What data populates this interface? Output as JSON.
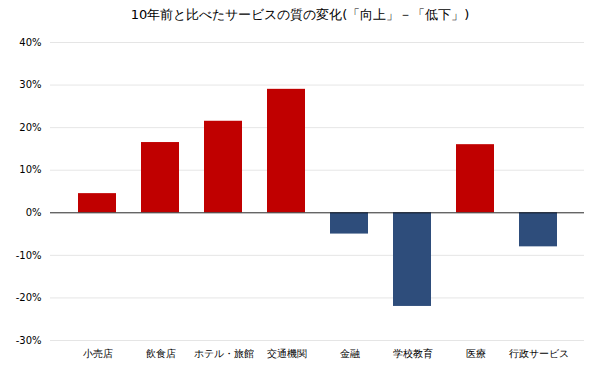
{
  "chart_data": {
    "type": "bar",
    "title": "10年前と比べたサービスの質の変化(「向上」－「低下」)",
    "categories": [
      "小売店",
      "飲食店",
      "ホテル・旅館",
      "交通機関",
      "金融",
      "学校教育",
      "医療",
      "行政サービス"
    ],
    "values": [
      4.5,
      16.5,
      21.5,
      29.0,
      -5.0,
      -22.0,
      16.0,
      -8.0
    ],
    "colors": [
      "#C00000",
      "#C00000",
      "#C00000",
      "#C00000",
      "#2E4D7B",
      "#2E4D7B",
      "#C00000",
      "#2E4D7B"
    ],
    "ylim": [
      -30,
      40
    ],
    "yticks": [
      {
        "value": -30,
        "label": "-30%"
      },
      {
        "value": -20,
        "label": "-20%"
      },
      {
        "value": -10,
        "label": "-10%"
      },
      {
        "value": 0,
        "label": "0%"
      },
      {
        "value": 10,
        "label": "10%"
      },
      {
        "value": 20,
        "label": "20%"
      },
      {
        "value": 30,
        "label": "30%"
      },
      {
        "value": 40,
        "label": "40%"
      }
    ],
    "grid": true
  }
}
